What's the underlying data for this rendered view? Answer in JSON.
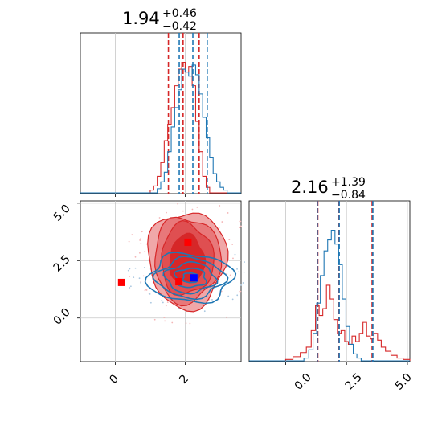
{
  "chart_data": [
    {
      "type": "histogram",
      "panel": "top-left",
      "title": {
        "value": "1.94",
        "plus": "+0.46",
        "minus": "−0.42"
      },
      "xlim": [
        -1.0,
        3.6
      ],
      "series": [
        {
          "color": "#d62728",
          "quantiles": [
            1.52,
            1.94,
            2.4
          ],
          "bins": [
            [
              1.05,
              0.02
            ],
            [
              1.15,
              0.05
            ],
            [
              1.25,
              0.12
            ],
            [
              1.35,
              0.22
            ],
            [
              1.45,
              0.38
            ],
            [
              1.55,
              0.5
            ],
            [
              1.65,
              0.62
            ],
            [
              1.75,
              0.78
            ],
            [
              1.85,
              0.9
            ],
            [
              1.95,
              0.95
            ],
            [
              2.05,
              0.88
            ],
            [
              2.15,
              0.92
            ],
            [
              2.25,
              0.78
            ],
            [
              2.35,
              0.52
            ],
            [
              2.45,
              0.3
            ],
            [
              2.55,
              0.12
            ],
            [
              2.65,
              0.04
            ]
          ]
        },
        {
          "color": "#1f77b4",
          "quantiles": [
            1.83,
            2.22,
            2.63
          ],
          "bins": [
            [
              1.25,
              0.03
            ],
            [
              1.35,
              0.08
            ],
            [
              1.45,
              0.15
            ],
            [
              1.55,
              0.3
            ],
            [
              1.65,
              0.48
            ],
            [
              1.75,
              0.62
            ],
            [
              1.85,
              0.75
            ],
            [
              1.95,
              0.9
            ],
            [
              2.05,
              0.88
            ],
            [
              2.15,
              0.85
            ],
            [
              2.25,
              0.93
            ],
            [
              2.35,
              0.86
            ],
            [
              2.45,
              0.72
            ],
            [
              2.55,
              0.55
            ],
            [
              2.65,
              0.4
            ],
            [
              2.75,
              0.26
            ],
            [
              2.85,
              0.14
            ],
            [
              2.95,
              0.08
            ],
            [
              3.05,
              0.04
            ],
            [
              3.15,
              0.02
            ]
          ]
        }
      ]
    },
    {
      "type": "histogram",
      "panel": "bottom-right",
      "title": {
        "value": "2.16",
        "plus": "+1.39",
        "minus": "−0.84"
      },
      "xlim": [
        -1.5,
        5.1
      ],
      "xticks": [
        "0.0",
        "2.5",
        "5.0"
      ],
      "series": [
        {
          "color": "#d62728",
          "quantiles": [
            1.32,
            2.16,
            3.55
          ],
          "bins": [
            [
              0.15,
              0.01
            ],
            [
              0.45,
              0.03
            ],
            [
              0.75,
              0.06
            ],
            [
              0.95,
              0.1
            ],
            [
              1.15,
              0.22
            ],
            [
              1.3,
              0.4
            ],
            [
              1.45,
              0.33
            ],
            [
              1.6,
              0.38
            ],
            [
              1.75,
              0.55
            ],
            [
              1.9,
              0.45
            ],
            [
              2.05,
              0.3
            ],
            [
              2.2,
              0.2
            ],
            [
              2.35,
              0.22
            ],
            [
              2.5,
              0.14
            ],
            [
              2.65,
              0.12
            ],
            [
              2.8,
              0.18
            ],
            [
              2.95,
              0.14
            ],
            [
              3.1,
              0.2
            ],
            [
              3.25,
              0.28
            ],
            [
              3.4,
              0.18
            ],
            [
              3.55,
              0.16
            ],
            [
              3.7,
              0.2
            ],
            [
              3.85,
              0.15
            ],
            [
              4.0,
              0.1
            ],
            [
              4.2,
              0.07
            ],
            [
              4.45,
              0.04
            ],
            [
              4.7,
              0.02
            ],
            [
              4.95,
              0.01
            ]
          ]
        },
        {
          "color": "#1f77b4",
          "quantiles": [
            1.3,
            2.2,
            3.58
          ],
          "bins": [
            [
              0.85,
              0.02
            ],
            [
              1.05,
              0.08
            ],
            [
              1.2,
              0.2
            ],
            [
              1.35,
              0.42
            ],
            [
              1.5,
              0.62
            ],
            [
              1.65,
              0.8
            ],
            [
              1.8,
              0.88
            ],
            [
              1.95,
              0.95
            ],
            [
              2.1,
              0.85
            ],
            [
              2.25,
              0.7
            ],
            [
              2.4,
              0.45
            ],
            [
              2.55,
              0.25
            ],
            [
              2.7,
              0.12
            ],
            [
              2.85,
              0.05
            ],
            [
              3.0,
              0.02
            ]
          ]
        }
      ]
    },
    {
      "type": "contour",
      "panel": "bottom-left",
      "xlim": [
        -1.0,
        3.6
      ],
      "ylim": [
        -1.9,
        5.1
      ],
      "xticks": [
        "0",
        "2"
      ],
      "yticks": [
        "0.0",
        "2.5",
        "5.0"
      ],
      "red_density": {
        "center": [
          2.05,
          2.55
        ],
        "levels": [
          {
            "rx": 1.12,
            "ry": 2.1,
            "fill": "#f0a7a8"
          },
          {
            "rx": 0.95,
            "ry": 1.85,
            "fill": "#e8787a"
          },
          {
            "rx": 0.75,
            "ry": 1.55,
            "fill": "#df4f51"
          },
          {
            "rx": 0.5,
            "ry": 1.05,
            "fill": "#d62728"
          }
        ]
      },
      "blue_contours": {
        "center": [
          2.15,
          1.75
        ],
        "levels": [
          {
            "rx": 1.2,
            "ry": 1.05
          },
          {
            "rx": 0.95,
            "ry": 0.85
          },
          {
            "rx": 0.7,
            "ry": 0.65
          },
          {
            "rx": 0.45,
            "ry": 0.42
          },
          {
            "rx": 0.22,
            "ry": 0.22
          }
        ]
      },
      "markers": [
        {
          "x": 0.18,
          "y": 1.55,
          "color": "#ff0000"
        },
        {
          "x": 2.08,
          "y": 3.3,
          "color": "#ff0000"
        },
        {
          "x": 1.82,
          "y": 1.58,
          "color": "#ff0000"
        },
        {
          "x": 2.25,
          "y": 1.75,
          "color": "#0000ff"
        }
      ]
    }
  ]
}
